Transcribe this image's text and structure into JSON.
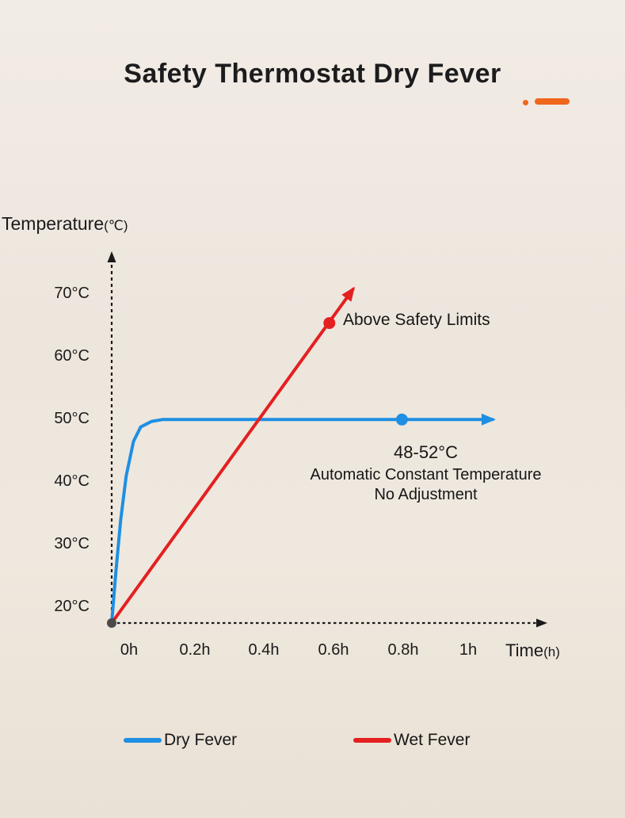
{
  "chart_data": {
    "type": "line",
    "title": "Safety Thermostat Dry Fever",
    "ylabel": "Temperature",
    "ylabel_unit": "(℃)",
    "xlabel": "Time",
    "xlabel_unit": "(h)",
    "axis_color": "#1a1a1a",
    "grid": false,
    "x_ticks": [
      "0h",
      "0.2h",
      "0.4h",
      "0.6h",
      "0.8h",
      "1h"
    ],
    "y_ticks": [
      "20°C",
      "30°C",
      "40°C",
      "50°C",
      "60°C",
      "70°C"
    ],
    "xlim": [
      0,
      1.05
    ],
    "ylim": [
      17.5,
      75
    ],
    "series": [
      {
        "name": "Dry Fever",
        "color": "#1e8fe3",
        "points": [
          [
            0,
            17.5
          ],
          [
            0.012,
            26
          ],
          [
            0.025,
            34
          ],
          [
            0.04,
            41
          ],
          [
            0.06,
            46.5
          ],
          [
            0.08,
            48.8
          ],
          [
            0.11,
            49.7
          ],
          [
            0.14,
            50
          ],
          [
            1.05,
            50
          ]
        ],
        "marker": [
          0.8,
          50
        ]
      },
      {
        "name": "Wet Fever",
        "color": "#e42020",
        "points": [
          [
            0,
            17.5
          ],
          [
            0.665,
            70.8
          ]
        ],
        "marker": [
          0.6,
          65.4
        ]
      }
    ],
    "annotations": {
      "above_safety": "Above Safety Limits",
      "constant_temp": {
        "range": "48-52°C",
        "line1": "Automatic Constant Temperature",
        "line2": "No Adjustment"
      }
    },
    "origin": {
      "t": 0,
      "temp": 17.5,
      "color": "#4a4a4a"
    },
    "legend_position": "bottom"
  },
  "accent": {
    "orange": "#f0661c"
  }
}
